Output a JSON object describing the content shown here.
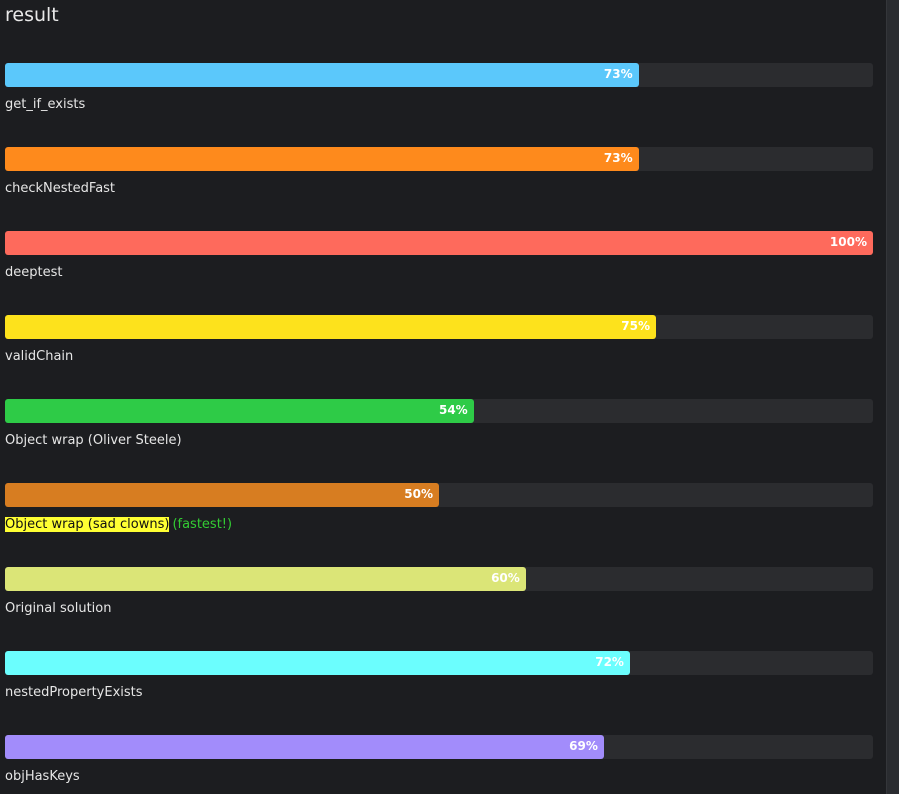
{
  "title": "result",
  "chart_data": {
    "type": "bar",
    "orientation": "horizontal",
    "xlim": [
      0,
      100
    ],
    "unit": "%",
    "bars": [
      {
        "label": "get_if_exists",
        "value": 73,
        "color": "#5bc8fb"
      },
      {
        "label": "checkNestedFast",
        "value": 73,
        "color": "#fe8a1c"
      },
      {
        "label": "deeptest",
        "value": 100,
        "color": "#fe6a5c"
      },
      {
        "label": "validChain",
        "value": 75,
        "color": "#fde21c"
      },
      {
        "label": "Object wrap (Oliver Steele)",
        "value": 54,
        "color": "#2ecb47"
      },
      {
        "label": "Object wrap (sad clowns)",
        "value": 50,
        "color": "#d77d21",
        "highlight": true,
        "note": "(fastest!)"
      },
      {
        "label": "Original solution",
        "value": 60,
        "color": "#dbe577"
      },
      {
        "label": "nestedPropertyExists",
        "value": 72,
        "color": "#6bfefe"
      },
      {
        "label": "objHasKeys",
        "value": 69,
        "color": "#a28cfb"
      }
    ]
  }
}
